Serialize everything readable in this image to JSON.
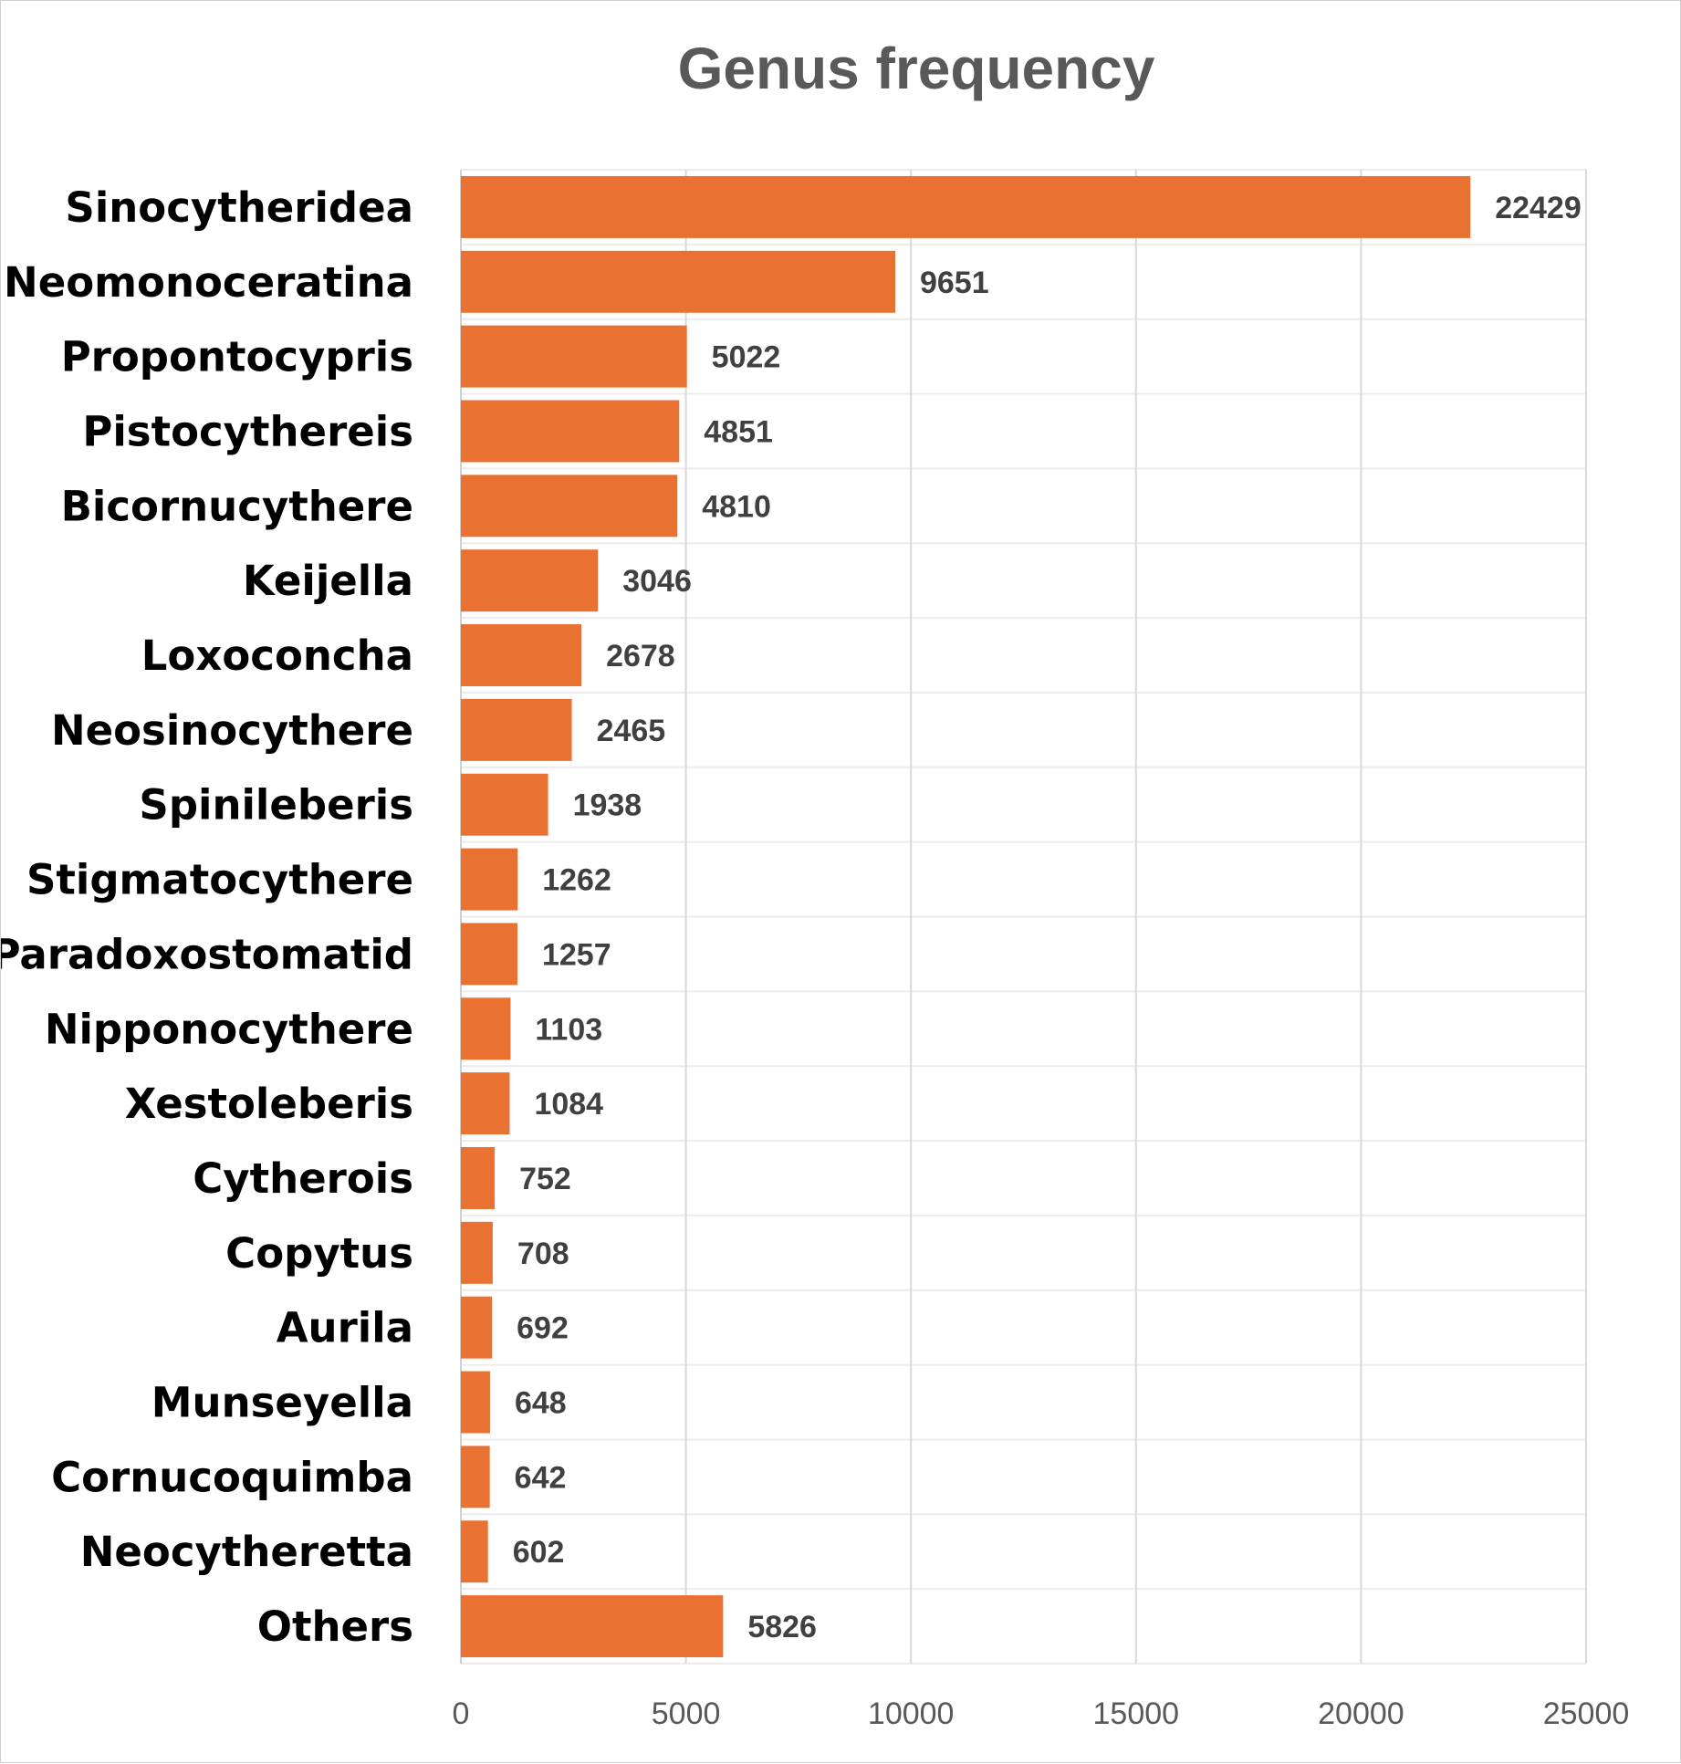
{
  "chart_data": {
    "type": "bar",
    "orientation": "horizontal",
    "title": "Genus frequency",
    "xlabel": "",
    "ylabel": "",
    "categories": [
      "Sinocytheridea",
      "Neomonoceratina",
      "Propontocypris",
      "Pistocythereis",
      "Bicornucythere",
      "Keijella",
      "Loxoconcha",
      "Neosinocythere",
      "Spinileberis",
      "Stigmatocythere",
      "Paradoxostomatid",
      "Nipponocythere",
      "Xestoleberis",
      "Cytherois",
      "Copytus",
      "Aurila",
      "Munseyella",
      "Cornucoquimba",
      "Neocytheretta",
      "Others"
    ],
    "values": [
      22429,
      9651,
      5022,
      4851,
      4810,
      3046,
      2678,
      2465,
      1938,
      1262,
      1257,
      1103,
      1084,
      752,
      708,
      692,
      648,
      642,
      602,
      5826
    ],
    "xlim": [
      0,
      25000
    ],
    "xticks": [
      "0",
      "5000",
      "10000",
      "15000",
      "20000",
      "25000"
    ],
    "data_labels": true,
    "grid": true,
    "legend": "none",
    "bar_color": "#E97132",
    "grid_color": "#d9d9d9"
  }
}
